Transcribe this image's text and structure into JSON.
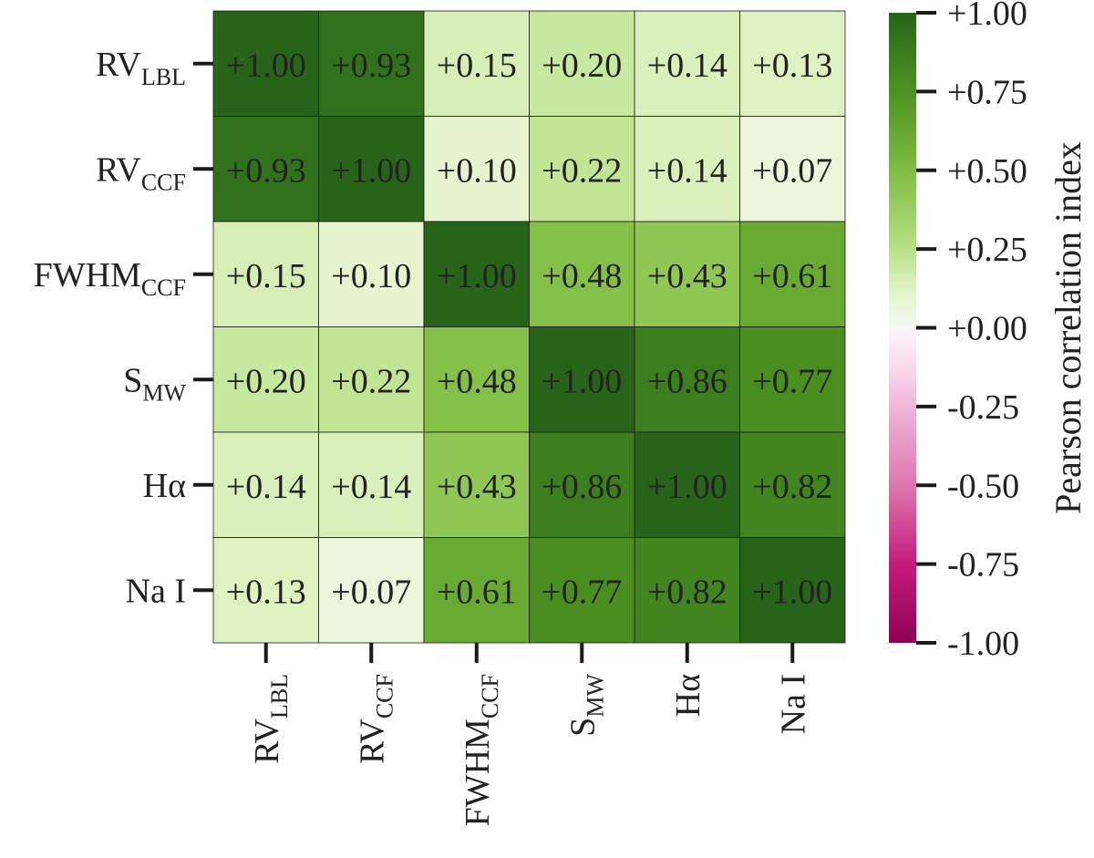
{
  "chart_data": {
    "type": "heatmap",
    "rows": [
      {
        "main": "RV",
        "sub": "LBL"
      },
      {
        "main": "RV",
        "sub": "CCF"
      },
      {
        "main": "FWHM",
        "sub": "CCF"
      },
      {
        "main": "S",
        "sub": "MW"
      },
      {
        "main": "Hα",
        "sub": ""
      },
      {
        "main": "Na I",
        "sub": ""
      }
    ],
    "columns": [
      {
        "main": "RV",
        "sub": "LBL"
      },
      {
        "main": "RV",
        "sub": "CCF"
      },
      {
        "main": "FWHM",
        "sub": "CCF"
      },
      {
        "main": "S",
        "sub": "MW"
      },
      {
        "main": "Hα",
        "sub": ""
      },
      {
        "main": "Na I",
        "sub": ""
      }
    ],
    "values": [
      [
        1.0,
        0.93,
        0.15,
        0.2,
        0.14,
        0.13
      ],
      [
        0.93,
        1.0,
        0.1,
        0.22,
        0.14,
        0.07
      ],
      [
        0.15,
        0.1,
        1.0,
        0.48,
        0.43,
        0.61
      ],
      [
        0.2,
        0.22,
        0.48,
        1.0,
        0.86,
        0.77
      ],
      [
        0.14,
        0.14,
        0.43,
        0.86,
        1.0,
        0.82
      ],
      [
        0.13,
        0.07,
        0.61,
        0.77,
        0.82,
        1.0
      ]
    ],
    "cell_labels": [
      [
        "+1.00",
        "+0.93",
        "+0.15",
        "+0.20",
        "+0.14",
        "+0.13"
      ],
      [
        "+0.93",
        "+1.00",
        "+0.10",
        "+0.22",
        "+0.14",
        "+0.07"
      ],
      [
        "+0.15",
        "+0.10",
        "+1.00",
        "+0.48",
        "+0.43",
        "+0.61"
      ],
      [
        "+0.20",
        "+0.22",
        "+0.48",
        "+1.00",
        "+0.86",
        "+0.77"
      ],
      [
        "+0.14",
        "+0.14",
        "+0.43",
        "+0.86",
        "+1.00",
        "+0.82"
      ],
      [
        "+0.13",
        "+0.07",
        "+0.61",
        "+0.77",
        "+0.82",
        "+1.00"
      ]
    ],
    "colorbar": {
      "label": "Pearson correlation index",
      "range": [
        -1.0,
        1.0
      ],
      "ticks": [
        1.0,
        0.75,
        0.5,
        0.25,
        0.0,
        -0.25,
        -0.5,
        -0.75,
        -1.0
      ],
      "tick_labels": [
        "+1.00",
        "+0.75",
        "+0.50",
        "+0.25",
        "+0.00",
        "-0.25",
        "-0.50",
        "-0.75",
        "-1.00"
      ],
      "colormap": "PiYG",
      "stops": [
        {
          "v": -1.0,
          "color": "#8e0152"
        },
        {
          "v": -0.75,
          "color": "#c51b7d"
        },
        {
          "v": -0.5,
          "color": "#de77ae"
        },
        {
          "v": -0.25,
          "color": "#f1b6da"
        },
        {
          "v": -0.1,
          "color": "#fde0ef"
        },
        {
          "v": 0.0,
          "color": "#f7f7f7"
        },
        {
          "v": 0.1,
          "color": "#e6f5d0"
        },
        {
          "v": 0.25,
          "color": "#b8e186"
        },
        {
          "v": 0.5,
          "color": "#7fbc41"
        },
        {
          "v": 0.75,
          "color": "#4d9221"
        },
        {
          "v": 1.0,
          "color": "#276419"
        }
      ]
    },
    "grid": true
  }
}
